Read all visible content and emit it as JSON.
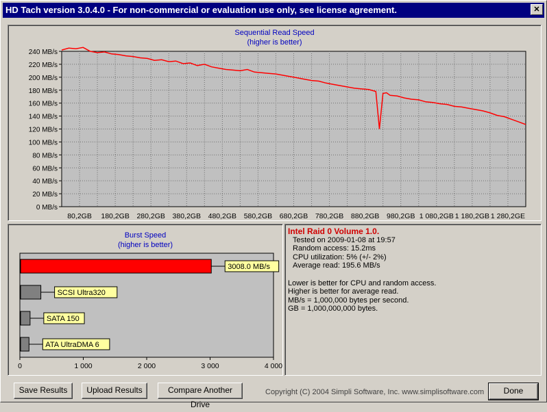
{
  "window": {
    "title": "HD Tach version 3.0.4.0  - For non-commercial or evaluation use only, see license agreement."
  },
  "read_chart": {
    "title": "Sequential Read Speed",
    "subtitle": "(higher is better)",
    "y_ticks": [
      "240 MB/s",
      "220 MB/s",
      "200 MB/s",
      "180 MB/s",
      "160 MB/s",
      "140 MB/s",
      "120 MB/s",
      "100 MB/s",
      "80 MB/s",
      "60 MB/s",
      "40 MB/s",
      "20 MB/s",
      "0 MB/s"
    ],
    "x_ticks": [
      "80,2GB",
      "180,2GB",
      "280,2GB",
      "380,2GB",
      "480,2GB",
      "580,2GB",
      "680,2GB",
      "780,2GB",
      "880,2GB",
      "980,2GB",
      "1 080,2GB",
      "1 180,2GB",
      "1 280,2GE"
    ]
  },
  "burst_chart": {
    "title": "Burst Speed",
    "subtitle": "(higher is better)",
    "x_ticks": [
      "0",
      "1 000",
      "2 000",
      "3 000",
      "4 000"
    ]
  },
  "chart_data": [
    {
      "type": "line",
      "title": "Sequential Read Speed",
      "subtitle": "(higher is better)",
      "xlabel": "",
      "ylabel": "",
      "ylim": [
        0,
        240
      ],
      "x_ticks": [
        "80,2GB",
        "180,2GB",
        "280,2GB",
        "380,2GB",
        "480,2GB",
        "580,2GB",
        "680,2GB",
        "780,2GB",
        "880,2GB",
        "980,2GB",
        "1 080,2GB",
        "1 180,2GB",
        "1 280,2GE"
      ],
      "grid": true,
      "series": [
        {
          "color": "#ff0000",
          "x": [
            0,
            20,
            40,
            60,
            80,
            100,
            120,
            140,
            160,
            180,
            200,
            220,
            240,
            260,
            280,
            300,
            320,
            340,
            360,
            380,
            400,
            420,
            440,
            460,
            480,
            500,
            520,
            540,
            560,
            580,
            600,
            620,
            640,
            660,
            680,
            700,
            720,
            740,
            760,
            780,
            800,
            820,
            840,
            860,
            880,
            890,
            900,
            910,
            920,
            940,
            960,
            980,
            1000,
            1020,
            1040,
            1060,
            1080,
            1100,
            1120,
            1140,
            1160,
            1180,
            1200,
            1220,
            1240,
            1260,
            1280,
            1300
          ],
          "values": [
            242,
            245,
            244,
            246,
            240,
            238,
            239,
            236,
            235,
            233,
            232,
            230,
            229,
            226,
            227,
            224,
            225,
            221,
            222,
            218,
            220,
            216,
            214,
            212,
            211,
            210,
            212,
            208,
            207,
            206,
            205,
            203,
            201,
            199,
            197,
            195,
            194,
            191,
            189,
            187,
            185,
            183,
            182,
            181,
            178,
            120,
            175,
            176,
            172,
            171,
            168,
            166,
            165,
            162,
            161,
            159,
            158,
            155,
            154,
            152,
            150,
            148,
            145,
            141,
            139,
            135,
            131,
            127
          ]
        }
      ]
    },
    {
      "type": "bar",
      "title": "Burst Speed",
      "subtitle": "(higher is better)",
      "xlim": [
        0,
        4000
      ],
      "x_ticks": [
        "0",
        "1 000",
        "2 000",
        "3 000",
        "4 000"
      ],
      "categories": [
        "3008.0 MB/s",
        "SCSI Ultra320",
        "SATA 150",
        "ATA UltraDMA 6"
      ],
      "values": [
        3008,
        320,
        150,
        133
      ],
      "colors": [
        "#ff0000",
        "#808080",
        "#808080",
        "#808080"
      ]
    }
  ],
  "info": {
    "drive": "Intel Raid 0 Volume 1.0.",
    "lines": [
      "Tested on 2009-01-08 at 19:57",
      "Random access: 15.2ms",
      "CPU utilization: 5% (+/- 2%)",
      "Average read: 195.6 MB/s"
    ],
    "notes": [
      "Lower is better for CPU and random access.",
      "Higher is better for average read.",
      "MB/s = 1,000,000 bytes per second.",
      "GB = 1,000,000,000 bytes."
    ]
  },
  "buttons": {
    "save": "Save Results",
    "upload": "Upload Results",
    "compare": "Compare Another Drive",
    "done": "Done"
  },
  "copyright": "Copyright (C) 2004 Simpli Software, Inc. www.simplisoftware.com"
}
